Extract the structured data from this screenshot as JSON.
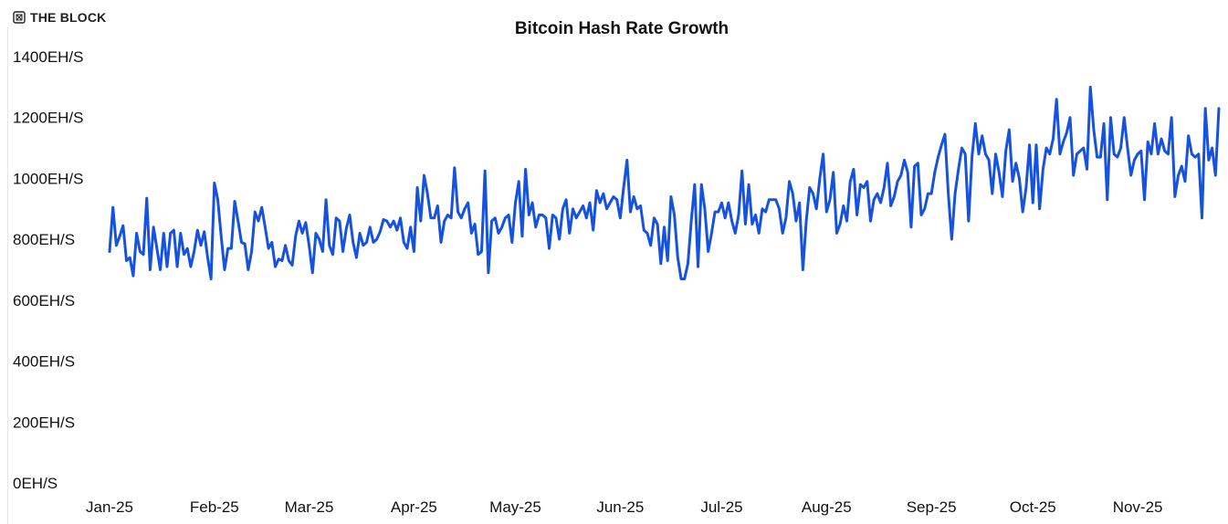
{
  "brand": {
    "name": "THE BLOCK",
    "logo_icon": "the-block-logo-icon"
  },
  "chart_data": {
    "type": "line",
    "title": "Bitcoin Hash Rate Growth",
    "xlabel": "",
    "ylabel": "",
    "ylim": [
      0,
      1400
    ],
    "y_ticks": [
      0,
      200,
      400,
      600,
      800,
      1000,
      1200,
      1400
    ],
    "y_tick_labels": [
      "0EH/S",
      "200EH/S",
      "400EH/S",
      "600EH/S",
      "800EH/S",
      "1000EH/S",
      "1200EH/S",
      "1400EH/S"
    ],
    "x_tick_labels": [
      "Jan-25",
      "Feb-25",
      "Mar-25",
      "Apr-25",
      "May-25",
      "Jun-25",
      "Jul-25",
      "Aug-25",
      "Sep-25",
      "Oct-25",
      "Nov-25"
    ],
    "x_tick_dates": [
      "2025-01-01",
      "2025-02-01",
      "2025-03-01",
      "2025-04-01",
      "2025-05-01",
      "2025-06-01",
      "2025-07-01",
      "2025-08-01",
      "2025-09-01",
      "2025-10-01",
      "2025-11-01"
    ],
    "grid": false,
    "legend": "none",
    "line_color": "#1652e0",
    "x_start": "2025-01-01",
    "series": [
      {
        "values": [
          760,
          905,
          780,
          810,
          845,
          730,
          740,
          680,
          820,
          760,
          750,
          935,
          700,
          840,
          770,
          700,
          820,
          710,
          820,
          830,
          710,
          820,
          750,
          770,
          710,
          760,
          830,
          780,
          825,
          740,
          670,
          985,
          930,
          810,
          700,
          770,
          770,
          925,
          860,
          790,
          785,
          700,
          760,
          890,
          860,
          905,
          840,
          770,
          790,
          710,
          735,
          730,
          780,
          730,
          715,
          810,
          860,
          820,
          855,
          780,
          690,
          820,
          800,
          760,
          930,
          780,
          750,
          870,
          860,
          760,
          835,
          880,
          790,
          740,
          820,
          780,
          790,
          840,
          790,
          800,
          825,
          865,
          860,
          840,
          860,
          830,
          870,
          790,
          770,
          840,
          760,
          970,
          860,
          1010,
          950,
          870,
          870,
          910,
          790,
          860,
          880,
          870,
          1035,
          890,
          870,
          900,
          920,
          820,
          850,
          750,
          760,
          1025,
          690,
          860,
          870,
          820,
          840,
          870,
          880,
          790,
          920,
          990,
          810,
          1030,
          880,
          920,
          840,
          880,
          880,
          870,
          770,
          880,
          870,
          800,
          900,
          930,
          820,
          900,
          870,
          890,
          910,
          870,
          920,
          830,
          960,
          920,
          950,
          900,
          920,
          940,
          930,
          870,
          970,
          1060,
          890,
          940,
          900,
          910,
          830,
          820,
          780,
          870,
          850,
          720,
          840,
          730,
          940,
          880,
          740,
          670,
          670,
          720,
          860,
          980,
          710,
          980,
          900,
          760,
          820,
          890,
          890,
          920,
          870,
          920,
          860,
          820,
          880,
          1025,
          850,
          980,
          850,
          880,
          820,
          900,
          890,
          930,
          930,
          930,
          900,
          820,
          870,
          990,
          950,
          860,
          920,
          700,
          860,
          970,
          950,
          900,
          1000,
          1080,
          890,
          930,
          1020,
          820,
          850,
          910,
          860,
          990,
          1030,
          880,
          980,
          970,
          990,
          860,
          930,
          950,
          920,
          970,
          1050,
          910,
          940,
          990,
          1010,
          1060,
          1020,
          840,
          1040,
          1050,
          880,
          900,
          950,
          950,
          1020,
          1070,
          1110,
          1145,
          950,
          800,
          950,
          1030,
          1100,
          1080,
          860,
          1070,
          1180,
          1080,
          1140,
          1080,
          1060,
          950,
          1080,
          1020,
          940,
          1090,
          1160,
          990,
          1050,
          1000,
          890,
          970,
          1110,
          920,
          1110,
          900,
          1030,
          1100,
          1080,
          1130,
          1260,
          1080,
          1120,
          1150,
          1200,
          1010,
          1080,
          1090,
          1100,
          1030,
          1300,
          1160,
          1070,
          1070,
          1180,
          930,
          1200,
          1080,
          1070,
          1100,
          1200,
          1100,
          1010,
          1060,
          1080,
          1090,
          930,
          1120,
          1080,
          1180,
          1080,
          1130,
          1090,
          1080,
          1200,
          940,
          1010,
          1040,
          990,
          1140,
          1080,
          1070,
          1080,
          870,
          1230,
          1060,
          1100,
          1010,
          1230
        ]
      }
    ]
  }
}
